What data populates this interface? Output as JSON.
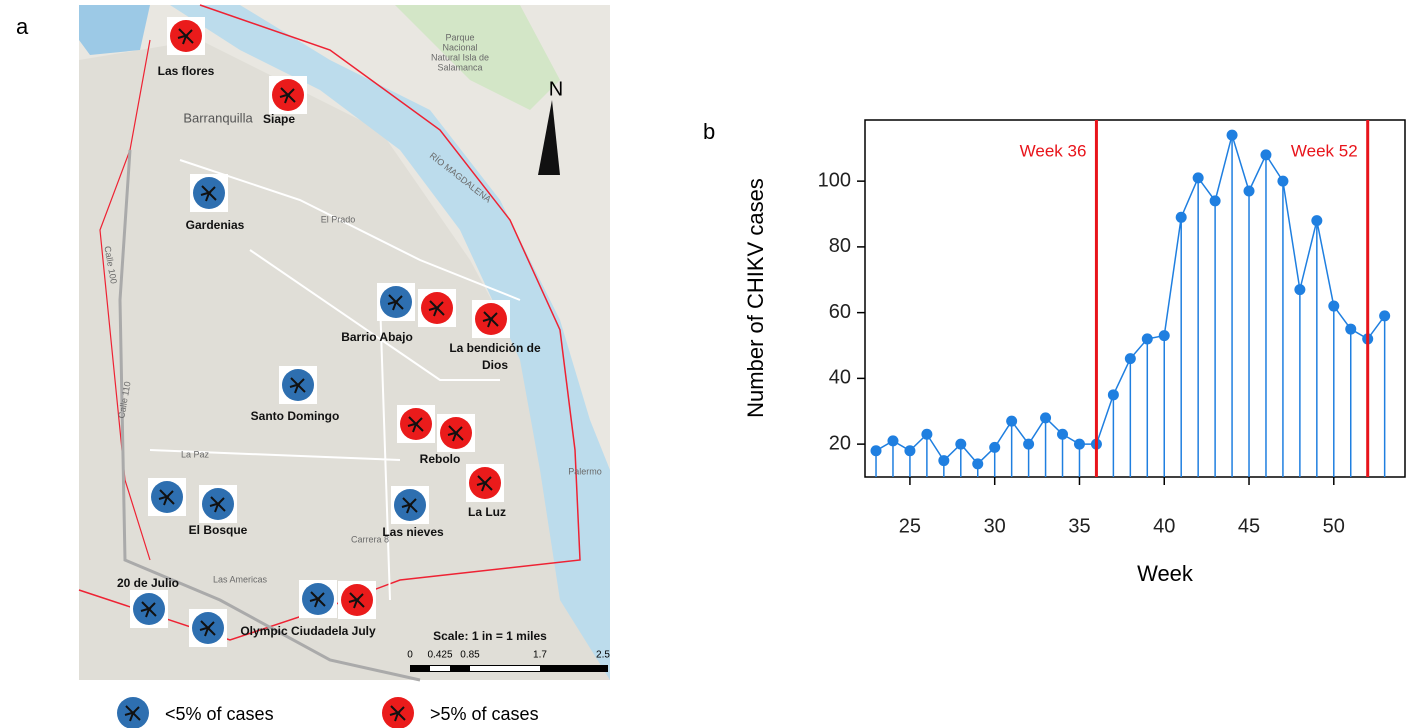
{
  "map": {
    "panel_label": "a",
    "places": [
      "Las flores",
      "Siape",
      "Gardenias",
      "Barrio Abajo",
      "La bendición de",
      "Dios",
      "Santo Domingo",
      "Rebolo",
      "La Luz",
      "El Bosque",
      "Las nieves",
      "20 de Julio",
      "Olympic Ciudadela July"
    ],
    "annotations": [
      "Parque",
      "Nacional",
      "Natural Isla de",
      "Salamanca",
      "Barranquilla",
      "RÍO MAGDALENA",
      "Palermo",
      "N",
      "Calle 100",
      "Calle 110",
      "Carrera 8",
      "El Prado",
      "La Paz",
      "Las Americas"
    ],
    "scale": {
      "title": "Scale: 1 in = 1 miles",
      "ticks": [
        "0",
        "0.425",
        "0.85",
        "1.7",
        "2.5"
      ]
    },
    "legend": [
      "<5% of cases",
      ">5% of cases"
    ]
  },
  "chart_data": {
    "type": "line",
    "panel_label": "b",
    "x_label": "Week",
    "y_label": "Number of CHIKV cases",
    "x": [
      23,
      24,
      25,
      26,
      27,
      28,
      29,
      30,
      31,
      32,
      33,
      34,
      35,
      36,
      37,
      38,
      39,
      40,
      41,
      42,
      43,
      44,
      45,
      46,
      47,
      48,
      49,
      50,
      51,
      52,
      53
    ],
    "series": [
      {
        "color": "#1f7fe0",
        "values": [
          18,
          21,
          18,
          23,
          15,
          20,
          14,
          19,
          27,
          20,
          28,
          23,
          20,
          20,
          35,
          46,
          52,
          53,
          89,
          101,
          94,
          114,
          97,
          108,
          100,
          67,
          88,
          62,
          55,
          52,
          59
        ]
      }
    ],
    "xlim": [
      22.35,
      54.2
    ],
    "ylim": [
      10,
      118.6
    ],
    "xticks": [
      25,
      30,
      35,
      40,
      45,
      50
    ],
    "yticks": [
      20,
      40,
      60,
      80,
      100
    ],
    "annotations": [
      {
        "x": 36,
        "label": "Week 36"
      },
      {
        "x": 52,
        "label": "Week 52"
      }
    ],
    "annotation_color": "#e8141b"
  }
}
